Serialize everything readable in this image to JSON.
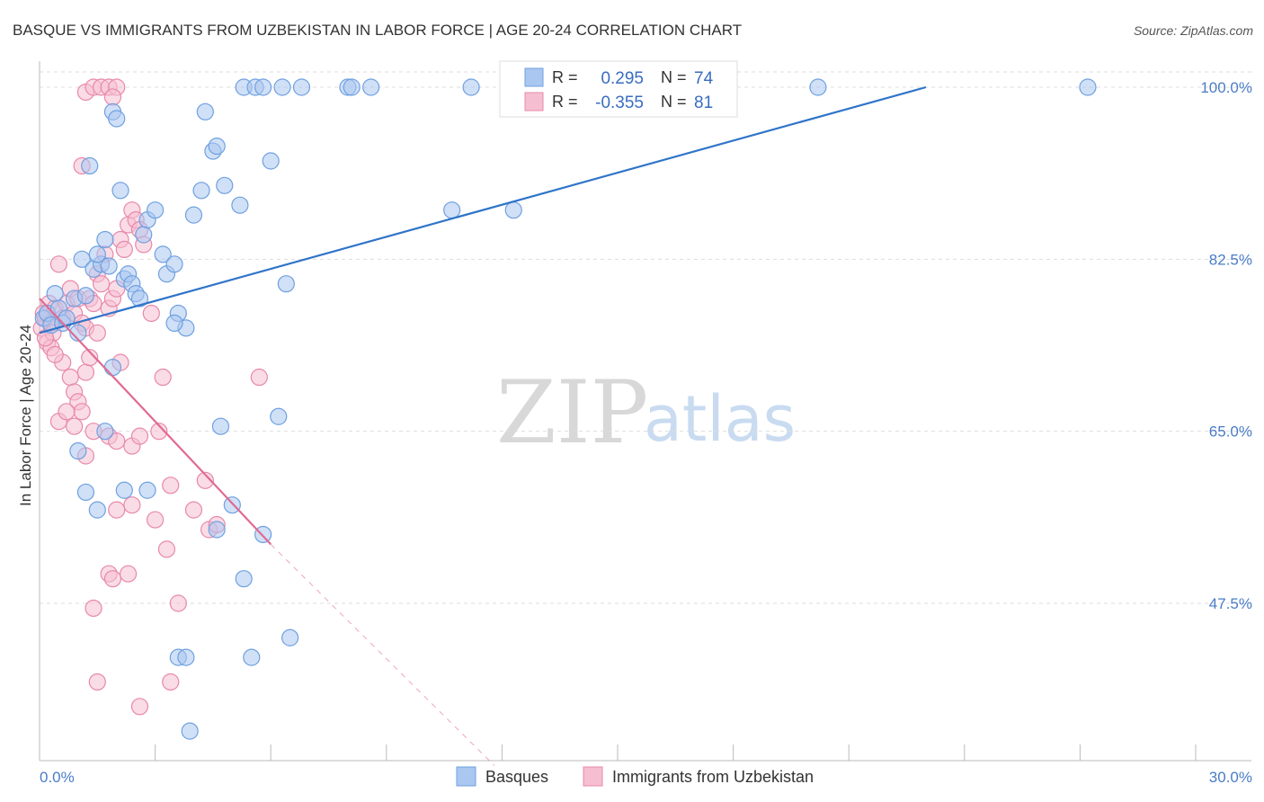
{
  "title": "BASQUE VS IMMIGRANTS FROM UZBEKISTAN IN LABOR FORCE | AGE 20-24 CORRELATION CHART",
  "source": "Source: ZipAtlas.com",
  "watermark": {
    "zip": "ZIP",
    "atlas": "atlas"
  },
  "colors": {
    "blue": "#6fa0e0",
    "blue_fill": "#a9c7f0",
    "blue_line": "#2f74c9",
    "pink": "#e888aa",
    "pink_fill": "#f6bfd1",
    "pink_line": "#e06a93",
    "grid": "#dddddd",
    "axis": "#bbbbbb"
  },
  "legend": {
    "rows": [
      {
        "r_label": "R =",
        "r_value": "0.295",
        "n_label": "N =",
        "n_value": "74",
        "series": "Basques"
      },
      {
        "r_label": "R =",
        "r_value": "-0.355",
        "n_label": "N =",
        "n_value": "81",
        "series": "Immigrants from Uzbekistan"
      }
    ]
  },
  "bottom_legend": [
    "Basques",
    "Immigrants from Uzbekistan"
  ],
  "chart_data": {
    "type": "scatter",
    "title": "BASQUE VS IMMIGRANTS FROM UZBEKISTAN IN LABOR FORCE | AGE 20-24 CORRELATION CHART",
    "ylabel": "In Labor Force | Age 20-24",
    "xlabel": "",
    "xlim": [
      0,
      30
    ],
    "ylim": [
      31,
      101.5
    ],
    "x_tick_labels": [
      {
        "value": 0,
        "label": "0.0%"
      },
      {
        "value": 30,
        "label": "30.0%"
      }
    ],
    "y_ticks": [
      {
        "value": 100,
        "label": "100.0%"
      },
      {
        "value": 82.5,
        "label": "82.5%"
      },
      {
        "value": 65,
        "label": "65.0%"
      },
      {
        "value": 47.5,
        "label": "47.5%"
      }
    ],
    "series": [
      {
        "name": "Basques",
        "color": "blue",
        "trend": {
          "x0": 0,
          "y0": 75.0,
          "x1": 23.0,
          "y1": 100.0,
          "dashed_to": null
        },
        "points": [
          [
            0.1,
            76.5
          ],
          [
            0.2,
            77.0
          ],
          [
            0.3,
            75.8
          ],
          [
            0.4,
            79.0
          ],
          [
            0.5,
            77.5
          ],
          [
            0.6,
            76.0
          ],
          [
            0.7,
            76.5
          ],
          [
            0.9,
            78.5
          ],
          [
            1.0,
            75.0
          ],
          [
            1.2,
            78.8
          ],
          [
            1.1,
            82.5
          ],
          [
            1.4,
            81.5
          ],
          [
            1.6,
            82.0
          ],
          [
            1.5,
            83.0
          ],
          [
            1.3,
            92.0
          ],
          [
            1.7,
            84.5
          ],
          [
            1.8,
            81.8
          ],
          [
            1.9,
            97.5
          ],
          [
            2.0,
            96.8
          ],
          [
            2.1,
            89.5
          ],
          [
            2.2,
            80.5
          ],
          [
            2.3,
            81.0
          ],
          [
            2.4,
            80.0
          ],
          [
            2.5,
            79.0
          ],
          [
            2.6,
            78.5
          ],
          [
            2.7,
            85.0
          ],
          [
            2.8,
            86.5
          ],
          [
            3.0,
            87.5
          ],
          [
            3.2,
            83.0
          ],
          [
            3.3,
            81.0
          ],
          [
            3.5,
            82.0
          ],
          [
            3.6,
            77.0
          ],
          [
            3.8,
            75.5
          ],
          [
            4.0,
            87.0
          ],
          [
            4.2,
            89.5
          ],
          [
            4.3,
            97.5
          ],
          [
            4.5,
            93.5
          ],
          [
            4.6,
            94.0
          ],
          [
            4.8,
            90.0
          ],
          [
            5.2,
            88.0
          ],
          [
            5.3,
            100.0
          ],
          [
            5.6,
            100.0
          ],
          [
            5.8,
            100.0
          ],
          [
            6.3,
            100.0
          ],
          [
            6.8,
            100.0
          ],
          [
            6.0,
            92.5
          ],
          [
            6.4,
            80.0
          ],
          [
            8.0,
            100.0
          ],
          [
            8.1,
            100.0
          ],
          [
            8.6,
            100.0
          ],
          [
            11.2,
            100.0
          ],
          [
            10.7,
            87.5
          ],
          [
            12.3,
            87.5
          ],
          [
            20.2,
            100.0
          ],
          [
            27.2,
            100.0
          ],
          [
            1.0,
            63.0
          ],
          [
            1.2,
            58.8
          ],
          [
            1.5,
            57.0
          ],
          [
            1.7,
            65.0
          ],
          [
            1.9,
            71.5
          ],
          [
            2.2,
            59.0
          ],
          [
            2.8,
            59.0
          ],
          [
            4.6,
            55.0
          ],
          [
            4.7,
            65.5
          ],
          [
            5.0,
            57.5
          ],
          [
            5.5,
            42.0
          ],
          [
            5.3,
            50.0
          ],
          [
            5.8,
            54.5
          ],
          [
            6.2,
            66.5
          ],
          [
            6.5,
            44.0
          ],
          [
            3.6,
            42.0
          ],
          [
            3.8,
            42.0
          ],
          [
            3.9,
            34.5
          ],
          [
            3.5,
            76.0
          ]
        ]
      },
      {
        "name": "Immigrants from Uzbekistan",
        "color": "pink",
        "trend": {
          "x0": 0,
          "y0": 78.5,
          "x1": 6.0,
          "y1": 53.5,
          "dashed_to": {
            "x": 11.8,
            "y": 31.0
          }
        },
        "points": [
          [
            0.05,
            75.5
          ],
          [
            0.1,
            77.0
          ],
          [
            0.15,
            76.5
          ],
          [
            0.2,
            74.0
          ],
          [
            0.25,
            78.0
          ],
          [
            0.3,
            76.0
          ],
          [
            0.35,
            75.0
          ],
          [
            0.4,
            77.5
          ],
          [
            0.5,
            82.0
          ],
          [
            0.6,
            76.5
          ],
          [
            0.7,
            78.0
          ],
          [
            0.8,
            79.5
          ],
          [
            0.9,
            77.0
          ],
          [
            1.0,
            78.5
          ],
          [
            1.1,
            76.0
          ],
          [
            1.2,
            75.5
          ],
          [
            1.3,
            78.5
          ],
          [
            1.4,
            78.0
          ],
          [
            1.5,
            81.0
          ],
          [
            1.6,
            80.0
          ],
          [
            1.7,
            83.0
          ],
          [
            1.8,
            77.5
          ],
          [
            1.9,
            78.5
          ],
          [
            2.0,
            79.5
          ],
          [
            2.1,
            84.5
          ],
          [
            2.2,
            83.5
          ],
          [
            2.3,
            86.0
          ],
          [
            2.4,
            87.5
          ],
          [
            2.5,
            86.5
          ],
          [
            2.6,
            85.5
          ],
          [
            2.7,
            84.0
          ],
          [
            1.1,
            92.0
          ],
          [
            1.2,
            99.5
          ],
          [
            1.4,
            100.0
          ],
          [
            1.6,
            100.0
          ],
          [
            1.8,
            100.0
          ],
          [
            2.0,
            100.0
          ],
          [
            1.9,
            99.0
          ],
          [
            0.6,
            72.0
          ],
          [
            0.8,
            70.5
          ],
          [
            0.9,
            69.0
          ],
          [
            1.0,
            68.0
          ],
          [
            1.1,
            67.0
          ],
          [
            1.2,
            71.0
          ],
          [
            1.3,
            72.5
          ],
          [
            1.5,
            75.0
          ],
          [
            0.5,
            66.0
          ],
          [
            0.7,
            67.0
          ],
          [
            0.9,
            65.5
          ],
          [
            1.2,
            62.5
          ],
          [
            1.4,
            65.0
          ],
          [
            1.8,
            64.5
          ],
          [
            2.0,
            64.0
          ],
          [
            2.1,
            72.0
          ],
          [
            2.4,
            63.5
          ],
          [
            2.6,
            64.5
          ],
          [
            2.9,
            77.0
          ],
          [
            3.1,
            65.0
          ],
          [
            3.2,
            70.5
          ],
          [
            3.4,
            59.5
          ],
          [
            4.0,
            57.0
          ],
          [
            4.3,
            60.0
          ],
          [
            4.4,
            55.0
          ],
          [
            4.6,
            55.5
          ],
          [
            5.7,
            70.5
          ],
          [
            3.0,
            56.0
          ],
          [
            3.3,
            53.0
          ],
          [
            1.8,
            50.5
          ],
          [
            1.9,
            50.0
          ],
          [
            2.3,
            50.5
          ],
          [
            3.6,
            47.5
          ],
          [
            1.4,
            47.0
          ],
          [
            1.5,
            39.5
          ],
          [
            2.6,
            37.0
          ],
          [
            3.4,
            39.5
          ],
          [
            2.0,
            57.0
          ],
          [
            2.4,
            57.5
          ],
          [
            0.3,
            73.5
          ],
          [
            0.15,
            74.5
          ],
          [
            0.4,
            72.8
          ]
        ]
      }
    ]
  }
}
